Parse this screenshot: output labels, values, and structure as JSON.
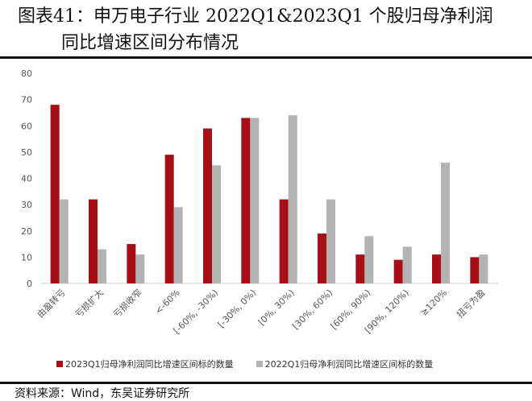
{
  "title": {
    "line1": "图表41：申万电子行业 2022Q1&2023Q1 个股归母净利润",
    "line2": "同比增速区间分布情况"
  },
  "footer_fragment": "资料来源：Wind，东吴证券研究所",
  "colors": {
    "series1": "#a50f15",
    "series2": "#b3b3b3",
    "axis": "#d0d0d0",
    "tick_text": "#555555"
  },
  "chart_data": {
    "type": "bar",
    "categories": [
      "由盈转亏",
      "亏损扩大",
      "亏损收窄",
      "<-60%",
      "[-60%, -30%)",
      "[-30%, 0%)",
      "[0%, 30%)",
      "[30%, 60%)",
      "[60%, 90%)",
      "[90%, 120%)",
      "≥120%",
      "扭亏为盈"
    ],
    "series": [
      {
        "name": "2023Q1归母净利润同比增速区间标的数量",
        "values": [
          68,
          32,
          15,
          49,
          59,
          63,
          32,
          19,
          11,
          9,
          11,
          10
        ]
      },
      {
        "name": "2022Q1归母净利润同比增速区间标的数量",
        "values": [
          32,
          13,
          11,
          29,
          45,
          63,
          64,
          32,
          18,
          14,
          46,
          11
        ]
      }
    ],
    "yticks": [
      0,
      10,
      20,
      30,
      40,
      50,
      60,
      70,
      80
    ],
    "ylim": [
      0,
      80
    ],
    "grid": false,
    "legend_position": "bottom"
  }
}
